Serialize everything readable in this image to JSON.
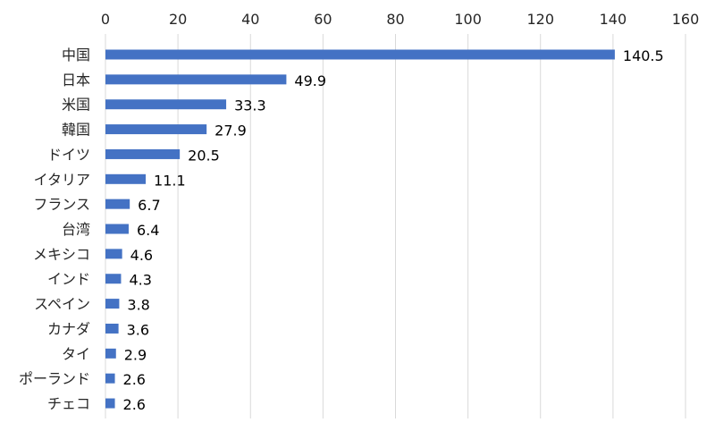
{
  "chart_data": {
    "type": "bar",
    "orientation": "horizontal",
    "categories": [
      "中国",
      "日本",
      "米国",
      "韓国",
      "ドイツ",
      "イタリア",
      "フランス",
      "台湾",
      "メキシコ",
      "インド",
      "スペイン",
      "カナダ",
      "タイ",
      "ポーランド",
      "チェコ"
    ],
    "values": [
      140.5,
      49.9,
      33.3,
      27.9,
      20.5,
      11.1,
      6.7,
      6.4,
      4.6,
      4.3,
      3.8,
      3.6,
      2.9,
      2.6,
      2.6
    ],
    "value_labels": [
      "140.5",
      "49.9",
      "33.3",
      "27.9",
      "20.5",
      "11.1",
      "6.7",
      "6.4",
      "4.6",
      "4.3",
      "3.8",
      "3.6",
      "2.9",
      "2.6",
      "2.6"
    ],
    "xlim": [
      0,
      160
    ],
    "x_ticks": [
      "0",
      "20",
      "40",
      "60",
      "80",
      "100",
      "120",
      "140",
      "160"
    ],
    "x_tick_values": [
      0,
      20,
      40,
      60,
      80,
      100,
      120,
      140,
      160
    ],
    "x_axis_position": "top",
    "grid": true,
    "legend": "none",
    "bar_color": "#4472c4",
    "title": "",
    "xlabel": "",
    "ylabel": ""
  }
}
